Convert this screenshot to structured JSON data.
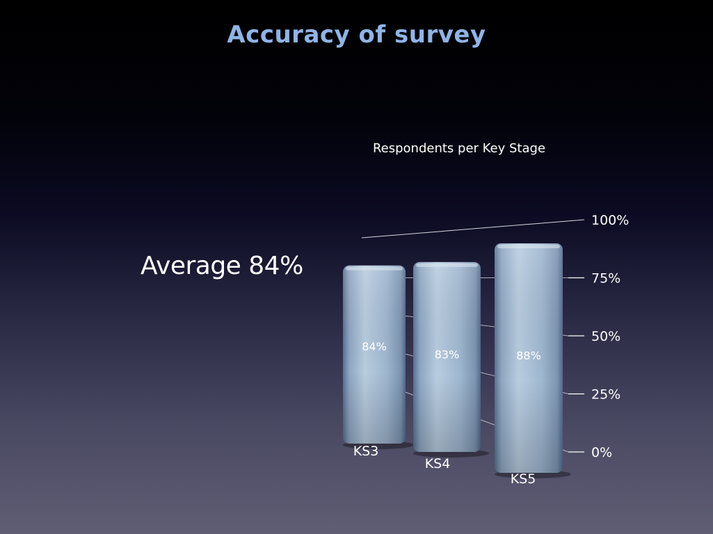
{
  "slide": {
    "title": "Accuracy of survey",
    "average_label": "Average 84%"
  },
  "chart_data": {
    "type": "bar",
    "title": "Respondents per Key Stage",
    "categories": [
      "KS3",
      "KS4",
      "KS5"
    ],
    "values": [
      84,
      83,
      88
    ],
    "value_labels": [
      "84%",
      "83%",
      "88%"
    ],
    "ylim": [
      0,
      100
    ],
    "yticks": [
      0,
      25,
      50,
      75,
      100
    ],
    "ytick_labels": [
      "0%",
      "25%",
      "50%",
      "75%",
      "100%"
    ],
    "grid": true,
    "colors": {
      "bar": "#93abc6",
      "bar_light": "#b9cde0",
      "bar_dark": "#5a7190"
    }
  }
}
